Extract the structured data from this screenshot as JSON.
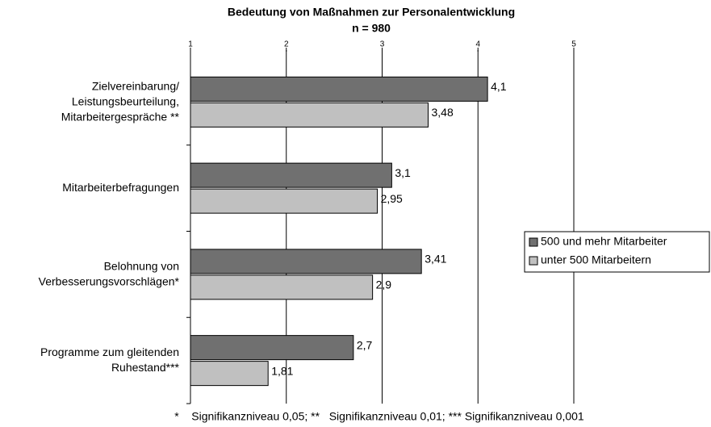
{
  "chart_data": {
    "type": "hbar",
    "title": "Bedeutung von Maßnahmen zur Personalentwicklung",
    "subtitle": "n = 980",
    "categories": [
      "Zielvereinbarung/\nLeistungsbeurteilung,\nMitarbeitergespräche **",
      "Mitarbeiterbefragungen",
      "Belohnung von\nVerbesserungsvorschlägen*",
      "Programme zum gleitenden\nRuhestand***"
    ],
    "series": [
      {
        "name": "500 und mehr Mitarbeiter",
        "color": "#707070",
        "values": [
          4.1,
          3.1,
          3.41,
          2.7
        ],
        "value_labels": [
          "4,1",
          "3,1",
          "3,41",
          "2,7"
        ]
      },
      {
        "name": "unter 500 Mitarbeitern",
        "color": "#c0c0c0",
        "values": [
          3.48,
          2.95,
          2.9,
          1.81
        ],
        "value_labels": [
          "3,48",
          "2,95",
          "2,9",
          "1,81"
        ]
      }
    ],
    "xlim": [
      1,
      5
    ],
    "xticks": [
      1,
      2,
      3,
      4,
      5
    ],
    "grid": true,
    "legend": "right",
    "footnote": "*    Signifikanzniveau 0,05; **   Signifikanzniveau 0,01; *** Signifikanzniveau 0,001"
  }
}
